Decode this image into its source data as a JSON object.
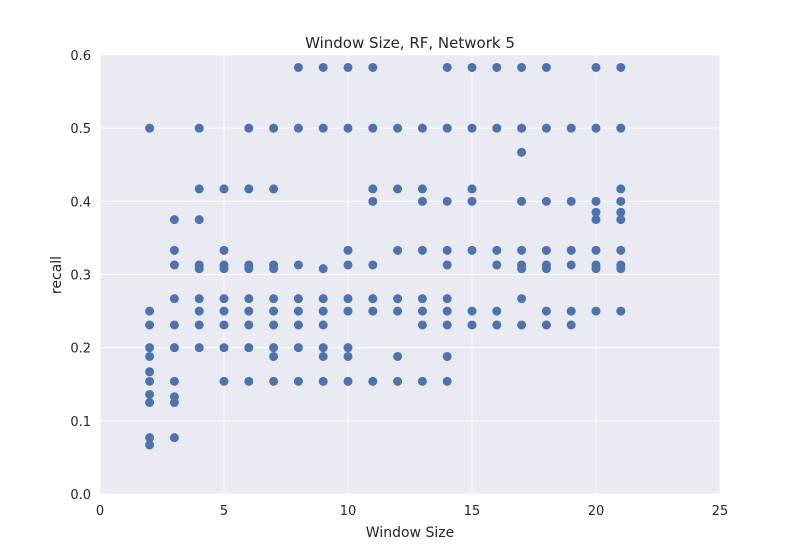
{
  "chart_data": {
    "type": "scatter",
    "title": "Window Size, RF, Network 5",
    "xlabel": "Window Size",
    "ylabel": "recall",
    "xlim": [
      0,
      25
    ],
    "ylim": [
      0.0,
      0.6
    ],
    "xticks": [
      "0",
      "5",
      "10",
      "15",
      "20",
      "25"
    ],
    "yticks": [
      "0.0",
      "0.1",
      "0.2",
      "0.3",
      "0.4",
      "0.5",
      "0.6"
    ],
    "grid": true,
    "colors": {
      "background": "#eaeaf2",
      "grid": "#ffffff",
      "marker": "#4c72b0"
    },
    "series": [
      {
        "points": [
          [
            2,
            0.5
          ],
          [
            2,
            0.25
          ],
          [
            2,
            0.231
          ],
          [
            2,
            0.2
          ],
          [
            2,
            0.188
          ],
          [
            2,
            0.167
          ],
          [
            2,
            0.154
          ],
          [
            2,
            0.136
          ],
          [
            2,
            0.125
          ],
          [
            2,
            0.077
          ],
          [
            2,
            0.067
          ],
          [
            3,
            0.375
          ],
          [
            3,
            0.333
          ],
          [
            3,
            0.313
          ],
          [
            3,
            0.267
          ],
          [
            3,
            0.231
          ],
          [
            3,
            0.2
          ],
          [
            3,
            0.154
          ],
          [
            3,
            0.133
          ],
          [
            3,
            0.125
          ],
          [
            3,
            0.077
          ],
          [
            4,
            0.5
          ],
          [
            4,
            0.417
          ],
          [
            4,
            0.375
          ],
          [
            4,
            0.313
          ],
          [
            4,
            0.308
          ],
          [
            4,
            0.267
          ],
          [
            4,
            0.25
          ],
          [
            4,
            0.231
          ],
          [
            4,
            0.2
          ],
          [
            5,
            0.417
          ],
          [
            5,
            0.333
          ],
          [
            5,
            0.313
          ],
          [
            5,
            0.308
          ],
          [
            5,
            0.267
          ],
          [
            5,
            0.25
          ],
          [
            5,
            0.231
          ],
          [
            5,
            0.2
          ],
          [
            5,
            0.154
          ],
          [
            6,
            0.5
          ],
          [
            6,
            0.417
          ],
          [
            6,
            0.313
          ],
          [
            6,
            0.308
          ],
          [
            6,
            0.267
          ],
          [
            6,
            0.25
          ],
          [
            6,
            0.231
          ],
          [
            6,
            0.2
          ],
          [
            6,
            0.154
          ],
          [
            7,
            0.5
          ],
          [
            7,
            0.417
          ],
          [
            7,
            0.313
          ],
          [
            7,
            0.308
          ],
          [
            7,
            0.267
          ],
          [
            7,
            0.25
          ],
          [
            7,
            0.231
          ],
          [
            7,
            0.2
          ],
          [
            7,
            0.188
          ],
          [
            7,
            0.154
          ],
          [
            8,
            0.583
          ],
          [
            8,
            0.5
          ],
          [
            8,
            0.313
          ],
          [
            8,
            0.267
          ],
          [
            8,
            0.25
          ],
          [
            8,
            0.231
          ],
          [
            8,
            0.2
          ],
          [
            8,
            0.154
          ],
          [
            9,
            0.583
          ],
          [
            9,
            0.5
          ],
          [
            9,
            0.308
          ],
          [
            9,
            0.267
          ],
          [
            9,
            0.25
          ],
          [
            9,
            0.231
          ],
          [
            9,
            0.2
          ],
          [
            9,
            0.188
          ],
          [
            9,
            0.154
          ],
          [
            10,
            0.583
          ],
          [
            10,
            0.5
          ],
          [
            10,
            0.333
          ],
          [
            10,
            0.313
          ],
          [
            10,
            0.267
          ],
          [
            10,
            0.25
          ],
          [
            10,
            0.2
          ],
          [
            10,
            0.188
          ],
          [
            10,
            0.154
          ],
          [
            11,
            0.583
          ],
          [
            11,
            0.5
          ],
          [
            11,
            0.417
          ],
          [
            11,
            0.4
          ],
          [
            11,
            0.313
          ],
          [
            11,
            0.267
          ],
          [
            11,
            0.25
          ],
          [
            11,
            0.154
          ],
          [
            12,
            0.5
          ],
          [
            12,
            0.417
          ],
          [
            12,
            0.333
          ],
          [
            12,
            0.267
          ],
          [
            12,
            0.25
          ],
          [
            12,
            0.188
          ],
          [
            12,
            0.154
          ],
          [
            13,
            0.5
          ],
          [
            13,
            0.417
          ],
          [
            13,
            0.4
          ],
          [
            13,
            0.333
          ],
          [
            13,
            0.267
          ],
          [
            13,
            0.25
          ],
          [
            13,
            0.231
          ],
          [
            13,
            0.154
          ],
          [
            14,
            0.583
          ],
          [
            14,
            0.5
          ],
          [
            14,
            0.4
          ],
          [
            14,
            0.333
          ],
          [
            14,
            0.313
          ],
          [
            14,
            0.267
          ],
          [
            14,
            0.25
          ],
          [
            14,
            0.231
          ],
          [
            14,
            0.188
          ],
          [
            14,
            0.154
          ],
          [
            15,
            0.583
          ],
          [
            15,
            0.5
          ],
          [
            15,
            0.417
          ],
          [
            15,
            0.4
          ],
          [
            15,
            0.333
          ],
          [
            15,
            0.25
          ],
          [
            15,
            0.231
          ],
          [
            16,
            0.583
          ],
          [
            16,
            0.5
          ],
          [
            16,
            0.333
          ],
          [
            16,
            0.313
          ],
          [
            16,
            0.25
          ],
          [
            16,
            0.231
          ],
          [
            17,
            0.583
          ],
          [
            17,
            0.5
          ],
          [
            17,
            0.467
          ],
          [
            17,
            0.4
          ],
          [
            17,
            0.333
          ],
          [
            17,
            0.313
          ],
          [
            17,
            0.308
          ],
          [
            17,
            0.267
          ],
          [
            17,
            0.231
          ],
          [
            18,
            0.583
          ],
          [
            18,
            0.5
          ],
          [
            18,
            0.4
          ],
          [
            18,
            0.333
          ],
          [
            18,
            0.313
          ],
          [
            18,
            0.308
          ],
          [
            18,
            0.25
          ],
          [
            18,
            0.231
          ],
          [
            19,
            0.5
          ],
          [
            19,
            0.4
          ],
          [
            19,
            0.333
          ],
          [
            19,
            0.313
          ],
          [
            19,
            0.25
          ],
          [
            19,
            0.231
          ],
          [
            20,
            0.583
          ],
          [
            20,
            0.5
          ],
          [
            20,
            0.4
          ],
          [
            20,
            0.385
          ],
          [
            20,
            0.375
          ],
          [
            20,
            0.333
          ],
          [
            20,
            0.313
          ],
          [
            20,
            0.308
          ],
          [
            20,
            0.25
          ],
          [
            21,
            0.583
          ],
          [
            21,
            0.5
          ],
          [
            21,
            0.417
          ],
          [
            21,
            0.4
          ],
          [
            21,
            0.385
          ],
          [
            21,
            0.375
          ],
          [
            21,
            0.333
          ],
          [
            21,
            0.313
          ],
          [
            21,
            0.308
          ],
          [
            21,
            0.25
          ]
        ]
      }
    ]
  }
}
